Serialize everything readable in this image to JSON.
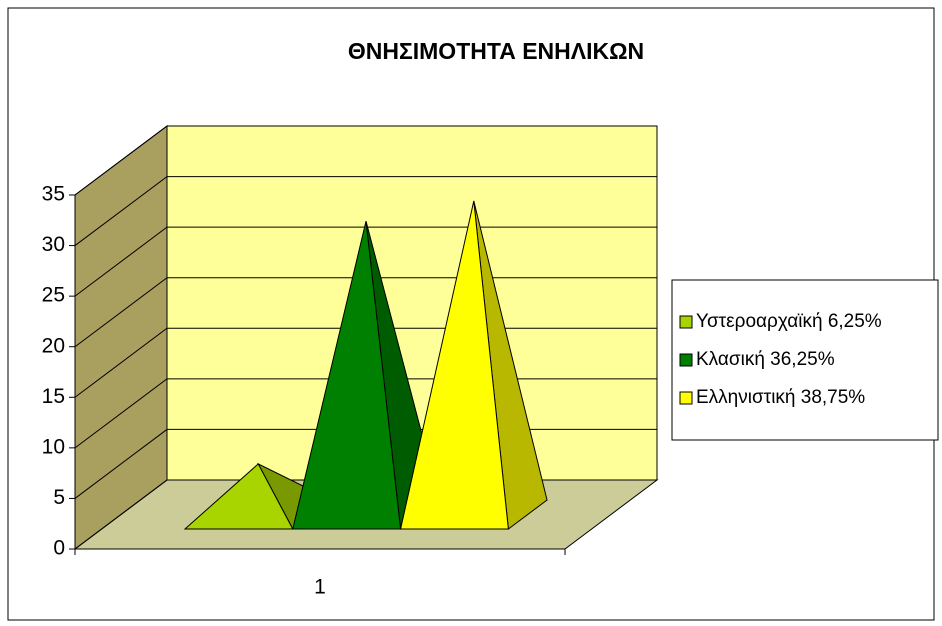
{
  "chart_data": {
    "type": "pyramid3d",
    "title": "ΘΝΗΣΙΜΟΤΗΤΑ ΕΝΗΛΙΚΩΝ",
    "categories": [
      "1"
    ],
    "series": [
      {
        "name": "Υστεροαρχαϊκή 6,25%",
        "color": "#a8d400",
        "values": [
          5
        ]
      },
      {
        "name": "Κλασική 36,25%",
        "color": "#008000",
        "values": [
          29
        ]
      },
      {
        "name": "Ελληνιστική 38,75%",
        "color": "#ffff00",
        "values": [
          31
        ]
      }
    ],
    "ylim": [
      0,
      35
    ],
    "yticks": [
      0,
      5,
      10,
      15,
      20,
      25,
      30,
      35
    ],
    "grid": true,
    "legend": "right"
  }
}
